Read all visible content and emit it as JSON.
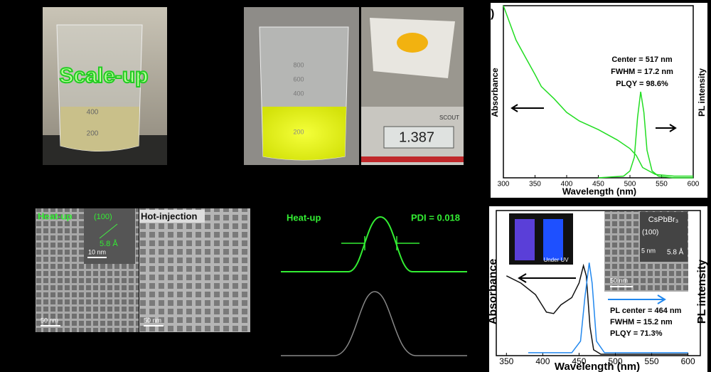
{
  "photos": {
    "scale_up": "Scale-up",
    "beaker_a_marks": [
      "400",
      "200"
    ],
    "beaker_b_marks": [
      "800",
      "600",
      "400",
      "200"
    ],
    "scale_brand": "SCOUT",
    "scale_display": "1.387"
  },
  "spectrum_top": {
    "panel_label": ")",
    "x_label": "Wavelength (nm)",
    "y_label_left": "Absorbance",
    "y_label_right": "PL intensity",
    "annotations": [
      "Center = 517 nm",
      "FWHM = 17.2 nm",
      "PLQY = 98.6%"
    ],
    "xlim": [
      300,
      600
    ],
    "xticks": [
      300,
      350,
      400,
      450,
      500,
      550,
      600
    ],
    "ylim": [
      0,
      1
    ],
    "series": [
      {
        "color": "#22dd22",
        "x": [
          300,
          310,
          320,
          335,
          350,
          360,
          380,
          400,
          420,
          450,
          480,
          500,
          510,
          520,
          540,
          570,
          600
        ],
        "values": [
          1.0,
          0.9,
          0.8,
          0.7,
          0.6,
          0.53,
          0.46,
          0.38,
          0.33,
          0.28,
          0.22,
          0.17,
          0.13,
          0.06,
          0.02,
          0.01,
          0.01
        ]
      },
      {
        "color": "#22dd22",
        "x": [
          450,
          490,
          500,
          507,
          512,
          517,
          522,
          527,
          535,
          545,
          570,
          600
        ],
        "values": [
          0.0,
          0.01,
          0.04,
          0.12,
          0.35,
          0.5,
          0.38,
          0.16,
          0.04,
          0.01,
          0.0,
          0.0
        ]
      }
    ]
  },
  "tem": {
    "heat_up": "Heat-up",
    "plane": "(100)",
    "spacing": "5.8 Å",
    "inset_scale": "10 nm",
    "hot_injection": "Hot-injection",
    "scale_left": "50 nm",
    "scale_right": "50 nm"
  },
  "size_distribution": {
    "heat_up": "Heat-up",
    "pdi": "PDI = 0.018"
  },
  "spectrum_bottom": {
    "panel_label": ")",
    "x_label": "Wavelength (nm)",
    "y_label_left": "Absorbance",
    "y_label_right": "PL intensity",
    "uv_label": "Under UV",
    "compound": "CsPbBr₃",
    "plane": "(100)",
    "inset_scale": "5 nm",
    "spacing": "5.8 Å",
    "tem_scale": "50 nm",
    "annotations": [
      "PL center = 464 nm",
      "FWHM = 15.2 nm",
      "PLQY = 71.3%"
    ],
    "xlim": [
      336,
      617
    ],
    "xticks": [
      350,
      400,
      450,
      500,
      550,
      600
    ],
    "ylim": [
      0,
      1
    ],
    "series": [
      {
        "color": "#111111",
        "x": [
          350,
          370,
          390,
          405,
          415,
          425,
          440,
          450,
          456,
          460,
          465,
          470,
          480,
          600
        ],
        "values": [
          0.55,
          0.5,
          0.42,
          0.3,
          0.29,
          0.35,
          0.4,
          0.5,
          0.62,
          0.55,
          0.2,
          0.04,
          0.01,
          0.01
        ]
      },
      {
        "color": "#2288ee",
        "x": [
          380,
          440,
          452,
          458,
          464,
          468,
          474,
          485,
          600
        ],
        "values": [
          0.02,
          0.02,
          0.1,
          0.4,
          0.64,
          0.5,
          0.1,
          0.02,
          0.02
        ]
      }
    ]
  }
}
